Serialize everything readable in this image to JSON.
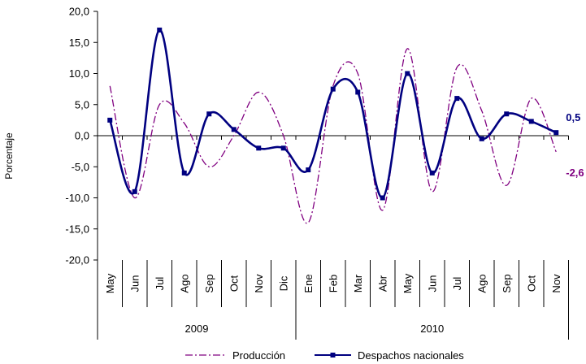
{
  "chart_data": {
    "type": "line",
    "title": "",
    "xlabel": "",
    "ylabel": "Porcentaje",
    "ylim": [
      -20,
      20
    ],
    "ytick_step": 5,
    "ytick_labels": [
      "-20,0",
      "-15,0",
      "-10,0",
      "-5,0",
      "0,0",
      "5,0",
      "10,0",
      "15,0",
      "20,0"
    ],
    "grid": false,
    "legend_position": "bottom",
    "categories": [
      "May",
      "Jun",
      "Jul",
      "Ago",
      "Sep",
      "Oct",
      "Nov",
      "Dic",
      "Ene",
      "Feb",
      "Mar",
      "Abr",
      "May",
      "Jun",
      "Jul",
      "Ago",
      "Sep",
      "Oct",
      "Nov"
    ],
    "year_groups": [
      {
        "label": "2009",
        "count": 8
      },
      {
        "label": "2010",
        "count": 11
      }
    ],
    "series": [
      {
        "name": "Producción",
        "color": "#800080",
        "style": "dash-dot",
        "values": [
          8.0,
          -10.0,
          5.0,
          2.0,
          -5.0,
          0.0,
          7.0,
          0.0,
          -14.0,
          8.0,
          10.0,
          -12.0,
          14.0,
          -9.0,
          11.0,
          4.0,
          -8.0,
          6.0,
          -2.6
        ],
        "end_label": "-2,6"
      },
      {
        "name": "Despachos nacionales",
        "color": "#000080",
        "style": "solid-marker",
        "values": [
          2.5,
          -9.0,
          17.0,
          -6.0,
          3.5,
          1.0,
          -2.0,
          -2.0,
          -5.5,
          7.5,
          7.0,
          -10.0,
          10.0,
          -6.0,
          6.0,
          -0.5,
          3.5,
          2.3,
          0.5
        ],
        "end_label": "0,5"
      }
    ]
  }
}
